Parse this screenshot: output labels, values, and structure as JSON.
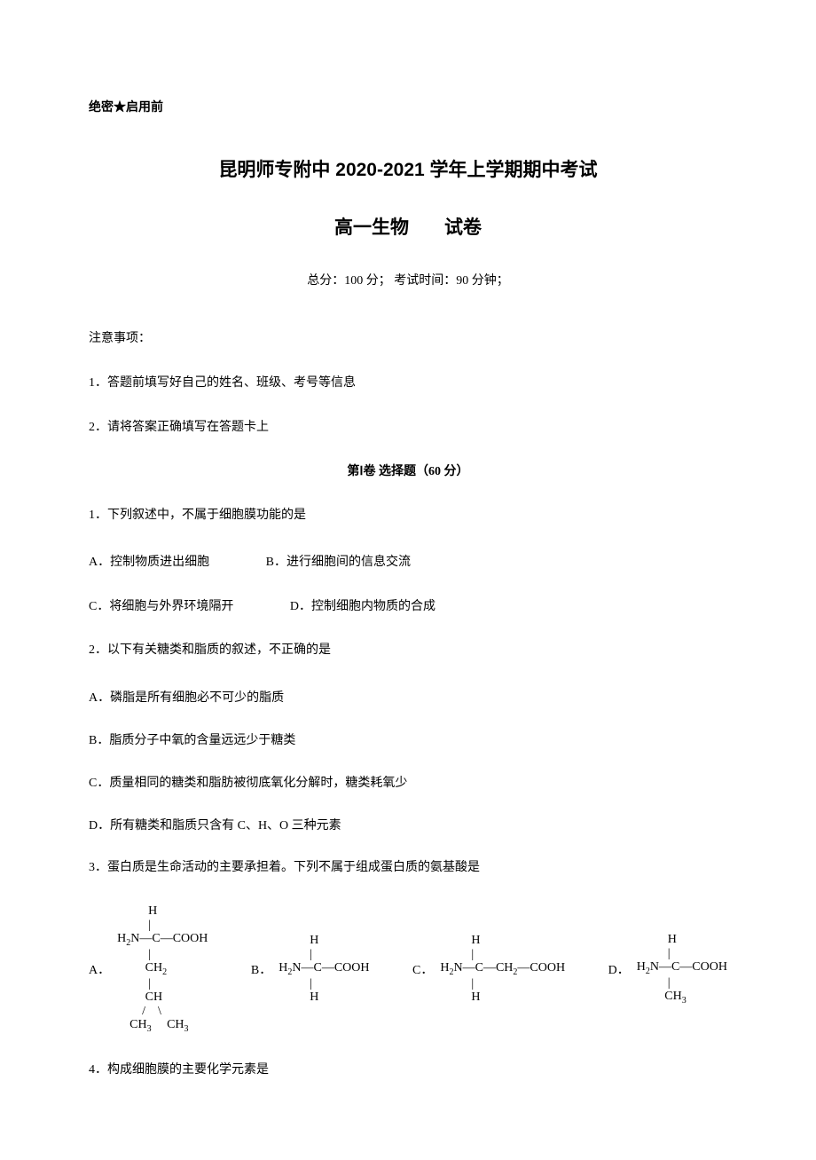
{
  "header": {
    "confidential": "绝密★启用前"
  },
  "title": {
    "main": "昆明师专附中 2020-2021 学年上学期期中考试",
    "subject": "高一生物",
    "papertype": "试卷"
  },
  "meta": {
    "score_time": "总分：100 分；   考试时间：90 分钟；"
  },
  "notice": {
    "heading": "注意事项：",
    "item1": "1．答题前填写好自己的姓名、班级、考号等信息",
    "item2": "2．请将答案正确填写在答题卡上"
  },
  "section1": {
    "title": "第Ⅰ卷   选择题（60 分）"
  },
  "q1": {
    "text": "1．下列叙述中，不属于细胞膜功能的是",
    "optA": "A．控制物质进出细胞",
    "optB": "B．进行细胞间的信息交流",
    "optC": "C．将细胞与外界环境隔开",
    "optD": "D．控制细胞内物质的合成"
  },
  "q2": {
    "text": "2．以下有关糖类和脂质的叙述，不正确的是",
    "optA": "A．磷脂是所有细胞必不可少的脂质",
    "optB": "B．脂质分子中氧的含量远远少于糖类",
    "optC": "C．质量相同的糖类和脂肪被彻底氧化分解时，糖类耗氧少",
    "optD": "D．所有糖类和脂质只含有 C、H、O 三种元素"
  },
  "q3": {
    "text": "3．蛋白质是生命活动的主要承担着。下列不属于组成蛋白质的氨基酸是",
    "letterA": "A．",
    "letterB": "B．",
    "letterC": "C．",
    "letterD": "D．"
  },
  "q4": {
    "text": "4．构成细胞膜的主要化学元素是"
  },
  "colors": {
    "text": "#000000",
    "background": "#ffffff"
  },
  "fonts": {
    "body": "SimSun",
    "heading": "SimHei",
    "chem": "Times New Roman",
    "body_size": 14,
    "title_size": 21
  }
}
